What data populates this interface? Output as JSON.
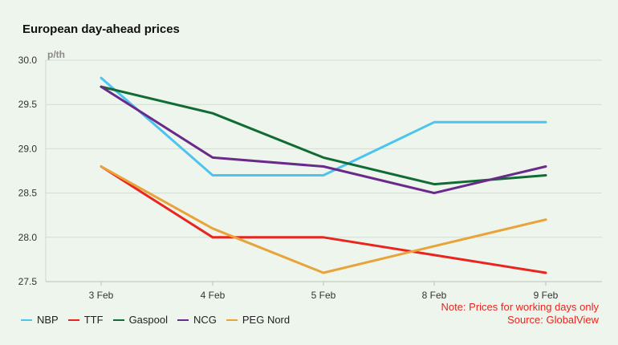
{
  "chart_data": {
    "type": "line",
    "title": "European day-ahead prices",
    "ylabel": "p/th",
    "xlabel": "",
    "categories": [
      "3 Feb",
      "4 Feb",
      "5 Feb",
      "8 Feb",
      "9 Feb"
    ],
    "ylim": [
      27.5,
      30.0
    ],
    "yticks": [
      "30.0",
      "29.5",
      "29.0",
      "28.5",
      "28.0",
      "27.5"
    ],
    "grid": true,
    "legend_position": "bottom-left",
    "series": [
      {
        "name": "NBP",
        "color": "#4dc4f0",
        "values": [
          29.8,
          28.7,
          28.7,
          29.3,
          29.3
        ]
      },
      {
        "name": "TTF",
        "color": "#e8251f",
        "values": [
          28.8,
          28.0,
          28.0,
          27.8,
          27.6
        ]
      },
      {
        "name": "Gaspool",
        "color": "#116b35",
        "values": [
          29.7,
          29.4,
          28.9,
          28.6,
          28.7
        ]
      },
      {
        "name": "NCG",
        "color": "#6a2a8c",
        "values": [
          29.7,
          28.9,
          28.8,
          28.5,
          28.8
        ]
      },
      {
        "name": "PEG Nord",
        "color": "#e8a33a",
        "values": [
          28.8,
          28.1,
          27.6,
          27.9,
          28.2
        ]
      }
    ],
    "notes": [
      "Note: Prices for working days only",
      "Source: GlobalView"
    ]
  }
}
